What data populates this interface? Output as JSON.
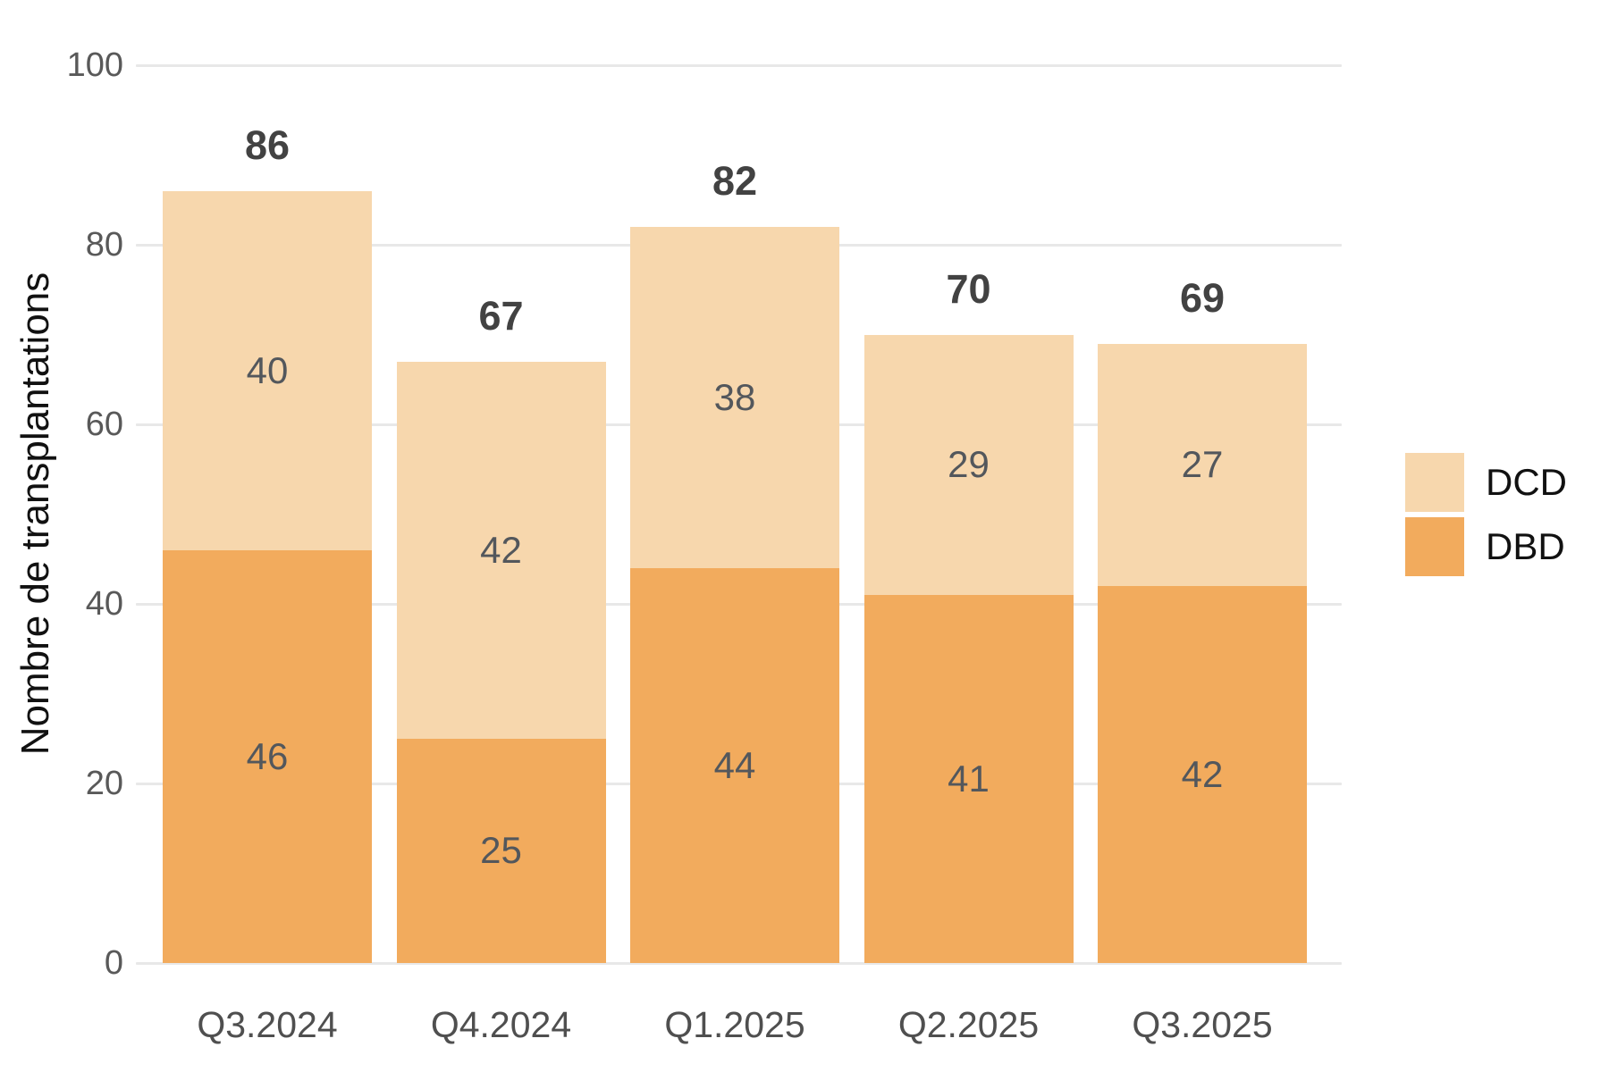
{
  "chart_data": {
    "type": "bar",
    "stacked": true,
    "title": "",
    "ylabel": "Nombre de transplantations",
    "xlabel": "",
    "ylim": [
      0,
      100
    ],
    "y_ticks": [
      0,
      20,
      40,
      60,
      80,
      100
    ],
    "grid": "horizontal",
    "legend_position": "right",
    "categories": [
      "Q3.2024",
      "Q4.2024",
      "Q1.2025",
      "Q2.2025",
      "Q3.2025"
    ],
    "series": [
      {
        "name": "DBD",
        "color": "#F2AB5D",
        "values": [
          46,
          25,
          44,
          41,
          42
        ]
      },
      {
        "name": "DCD",
        "color": "#F7D7AD",
        "values": [
          40,
          42,
          38,
          29,
          27
        ]
      }
    ],
    "totals": [
      86,
      67,
      82,
      70,
      69
    ],
    "legend": [
      {
        "label": "DCD",
        "color": "#F7D7AD"
      },
      {
        "label": "DBD",
        "color": "#F2AB5D"
      }
    ]
  },
  "styles": {
    "background": "#FFFFFF",
    "grid_color": "#E8E8E8",
    "tick_label_color": "#595959",
    "x_label_color": "#4F4F4F",
    "segment_label_color": "#53575C",
    "total_label_color": "#424242",
    "axis_title_color": "#111111",
    "legend_text_color": "#111111"
  }
}
